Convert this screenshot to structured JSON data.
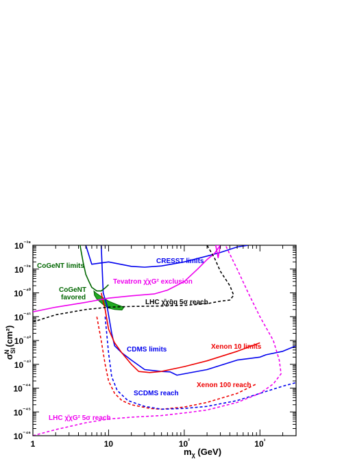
{
  "chart_data": {
    "type": "line",
    "x_scale": "log",
    "y_scale": "log",
    "xlim": [
      1,
      3000
    ],
    "ylim": [
      1e-46,
      1e-38
    ],
    "xlabel": "m_χ (GeV)",
    "ylabel": "σ_SI^N (cm²)",
    "x_ticks": [
      1,
      10,
      100,
      1000
    ],
    "x_tick_labels": [
      "1",
      "10",
      "10²",
      "10³"
    ],
    "y_ticks": [
      1e-46,
      1e-45,
      1e-44,
      1e-43,
      1e-42,
      1e-41,
      1e-40,
      1e-39,
      1e-38
    ],
    "y_tick_labels": [
      "10⁻⁴⁶",
      "10⁻⁴⁵",
      "10⁻⁴⁴",
      "10⁻⁴³",
      "10⁻⁴²",
      "10⁻⁴¹",
      "10⁻⁴⁰",
      "10⁻³⁹",
      "10⁻³⁸"
    ],
    "colors": {
      "blue": "#0000ee",
      "red": "#ee0000",
      "magenta": "#ee00ee",
      "green": "#006600",
      "green_fill": "#22aa22",
      "black": "#000000"
    },
    "series": [
      {
        "name": "CRESST limits",
        "color": "#0000ee",
        "dash": false,
        "points": [
          [
            5,
            1e-38
          ],
          [
            6,
            1.6e-39
          ],
          [
            10,
            2e-39
          ],
          [
            20,
            1.3e-39
          ],
          [
            30,
            1.2e-39
          ],
          [
            50,
            1.35e-39
          ],
          [
            100,
            2e-39
          ],
          [
            200,
            3.5e-39
          ],
          [
            300,
            5e-39
          ],
          [
            500,
            8.5e-39
          ],
          [
            700,
            1e-38
          ]
        ]
      },
      {
        "name": "CDMS limits",
        "color": "#0000ee",
        "dash": false,
        "points": [
          [
            8,
            1e-38
          ],
          [
            8.5,
            1e-40
          ],
          [
            9.5,
            3e-41
          ],
          [
            11,
            2e-42
          ],
          [
            12,
            6e-43
          ],
          [
            15,
            3e-43
          ],
          [
            20,
            1.5e-43
          ],
          [
            30,
            6e-44
          ],
          [
            50,
            5e-44
          ],
          [
            65,
            4.8e-44
          ],
          [
            80,
            3.5e-44
          ],
          [
            100,
            4e-44
          ],
          [
            200,
            6e-44
          ],
          [
            500,
            1.5e-43
          ],
          [
            1000,
            2e-43
          ],
          [
            1200,
            2.5e-43
          ],
          [
            2000,
            3.5e-43
          ],
          [
            3000,
            6e-43
          ]
        ]
      },
      {
        "name": "Xenon 10 limits",
        "color": "#ee0000",
        "dash": false,
        "points": [
          [
            8,
            1e-40
          ],
          [
            9,
            2e-41
          ],
          [
            10,
            3e-42
          ],
          [
            12,
            8e-43
          ],
          [
            15,
            3e-43
          ],
          [
            20,
            1e-43
          ],
          [
            25,
            5e-44
          ],
          [
            35,
            4.5e-44
          ],
          [
            50,
            5e-44
          ],
          [
            100,
            8e-44
          ],
          [
            200,
            1.4e-43
          ],
          [
            500,
            3.5e-43
          ],
          [
            1000,
            8e-43
          ]
        ]
      },
      {
        "name": "Xenon 100 reach",
        "color": "#ee0000",
        "dash": true,
        "points": [
          [
            7,
            1e-41
          ],
          [
            8,
            1e-42
          ],
          [
            9,
            1e-43
          ],
          [
            10,
            2e-44
          ],
          [
            12,
            6e-45
          ],
          [
            15,
            3e-45
          ],
          [
            20,
            2e-45
          ],
          [
            35,
            1.4e-45
          ],
          [
            50,
            1.3e-45
          ],
          [
            100,
            1.6e-45
          ],
          [
            200,
            2.5e-45
          ],
          [
            500,
            6e-45
          ],
          [
            900,
            1.5e-44
          ]
        ]
      },
      {
        "name": "SCDMS reach",
        "color": "#0000ee",
        "dash": true,
        "points": [
          [
            9,
            1e-41
          ],
          [
            10,
            3e-43
          ],
          [
            11,
            3e-44
          ],
          [
            13,
            8e-45
          ],
          [
            18,
            3e-45
          ],
          [
            30,
            1.7e-45
          ],
          [
            50,
            1.3e-45
          ],
          [
            100,
            1.4e-45
          ],
          [
            200,
            1.7e-45
          ],
          [
            500,
            3e-45
          ],
          [
            1000,
            6e-45
          ],
          [
            2000,
            1.2e-44
          ],
          [
            3000,
            1.7e-44
          ]
        ]
      },
      {
        "name": "Tevatron χ̄χG² exclusion",
        "color": "#ee00ee",
        "dash": false,
        "points": [
          [
            1,
            1.6e-41
          ],
          [
            2,
            2.5e-41
          ],
          [
            5,
            4e-41
          ],
          [
            10,
            6e-41
          ],
          [
            20,
            7.5e-41
          ],
          [
            40,
            9e-41
          ],
          [
            60,
            1.3e-40
          ],
          [
            100,
            3e-40
          ],
          [
            150,
            1e-39
          ],
          [
            200,
            2.5e-39
          ],
          [
            250,
            4.5e-39
          ],
          [
            300,
            1e-38
          ]
        ]
      },
      {
        "name": "Tevatron χ̄χG² exclusion (boundary)",
        "color": "#ee00ee",
        "dash": false,
        "points": [
          [
            300,
            1e-38
          ],
          [
            260,
            1e-38
          ],
          [
            280,
            3e-39
          ],
          [
            300,
            1e-38
          ]
        ]
      },
      {
        "name": "LHC χ̄χq̄q 5σ reach",
        "color": "#000000",
        "dash": true,
        "points": [
          [
            1,
            6e-42
          ],
          [
            2,
            1.2e-41
          ],
          [
            5,
            2e-41
          ],
          [
            10,
            2.5e-41
          ],
          [
            20,
            2.7e-41
          ],
          [
            50,
            2.8e-41
          ],
          [
            100,
            3e-41
          ],
          [
            200,
            3.5e-41
          ],
          [
            300,
            4.5e-41
          ],
          [
            400,
            5e-41
          ],
          [
            450,
            8e-41
          ],
          [
            400,
            2e-40
          ],
          [
            300,
            8e-40
          ],
          [
            250,
            3e-39
          ],
          [
            200,
            1e-38
          ]
        ]
      },
      {
        "name": "LHC χ̄χG² 5σ reach",
        "color": "#ee00ee",
        "dash": true,
        "points": [
          [
            1,
            1e-46
          ],
          [
            2,
            1.8e-46
          ],
          [
            5,
            3.5e-46
          ],
          [
            10,
            5e-46
          ],
          [
            20,
            6e-46
          ],
          [
            50,
            7e-46
          ],
          [
            100,
            9e-46
          ],
          [
            200,
            1.2e-45
          ],
          [
            500,
            2.5e-45
          ],
          [
            1000,
            6e-45
          ],
          [
            1500,
            1.5e-44
          ],
          [
            1900,
            4e-44
          ],
          [
            1800,
            1.5e-43
          ],
          [
            1500,
            1e-42
          ],
          [
            1000,
            1e-41
          ],
          [
            700,
            1e-40
          ],
          [
            500,
            1e-39
          ],
          [
            350,
            1e-38
          ]
        ]
      },
      {
        "name": "CoGeNT limits",
        "color": "#006600",
        "dash": false,
        "points": [
          [
            4.2,
            1e-38
          ],
          [
            4.6,
            2e-39
          ],
          [
            5,
            6e-40
          ],
          [
            5.5,
            3e-40
          ],
          [
            6,
            1.7e-40
          ],
          [
            7,
            1.2e-40
          ],
          [
            8,
            1.2e-40
          ],
          [
            9,
            1.6e-40
          ],
          [
            10,
            2.2e-40
          ]
        ]
      }
    ],
    "regions": [
      {
        "name": "CoGeNT favored",
        "color": "#22aa22",
        "edge": "#006600",
        "polygon": [
          [
            6.4,
            1.2e-40
          ],
          [
            6.8,
            1e-40
          ],
          [
            8,
            7e-41
          ],
          [
            10,
            4.5e-41
          ],
          [
            13,
            3.2e-41
          ],
          [
            16,
            2.5e-41
          ],
          [
            15,
            1.9e-41
          ],
          [
            12,
            2e-41
          ],
          [
            10,
            2.3e-41
          ],
          [
            8.5,
            3.2e-41
          ],
          [
            7,
            5.5e-41
          ],
          [
            6.5,
            8e-41
          ]
        ]
      }
    ],
    "annotations": {
      "cresst": "CRESST limits",
      "cogent_limits": "CoGeNT limits",
      "cogent_favored_1": "CoGeNT",
      "cogent_favored_2": "favored",
      "tevatron": "Tevatron χ̄χG² exclusion",
      "lhc_qq": "LHC χ̄χq̄q 5σ reach",
      "cdms": "CDMS limits",
      "xenon10": "Xenon 10 limits",
      "xenon100": "Xenon 100 reach",
      "scdms": "SCDMS reach",
      "lhc_gg": "LHC χ̄χG² 5σ reach"
    }
  }
}
